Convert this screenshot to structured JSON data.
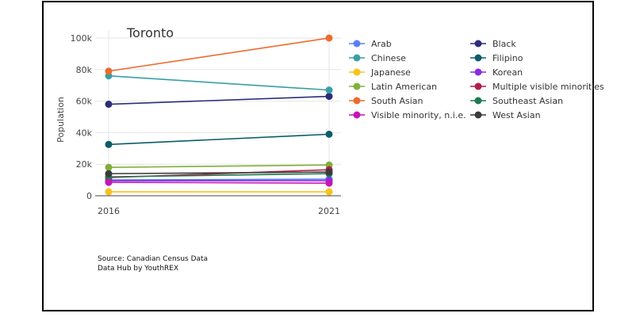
{
  "chart_data": {
    "type": "line",
    "title": "Toronto",
    "ylabel": "Population",
    "xlabel": "",
    "x": [
      "2016",
      "2021"
    ],
    "ylim": [
      0,
      105000
    ],
    "yticks": [
      {
        "value": 0,
        "label": "0"
      },
      {
        "value": 20000,
        "label": "20k"
      },
      {
        "value": 40000,
        "label": "40k"
      },
      {
        "value": 60000,
        "label": "60k"
      },
      {
        "value": 80000,
        "label": "80k"
      },
      {
        "value": 100000,
        "label": "100k"
      }
    ],
    "grid": true,
    "legend_position": "right",
    "series": [
      {
        "name": "Arab",
        "color": "#5b7ef5",
        "values": [
          10000,
          10500
        ]
      },
      {
        "name": "Black",
        "color": "#2b2d7c",
        "values": [
          58000,
          63000
        ]
      },
      {
        "name": "Chinese",
        "color": "#3a9ea5",
        "values": [
          76000,
          67000
        ]
      },
      {
        "name": "Filipino",
        "color": "#0c5c6a",
        "values": [
          32500,
          39000
        ]
      },
      {
        "name": "Japanese",
        "color": "#f7c21a",
        "values": [
          2500,
          2500
        ]
      },
      {
        "name": "Korean",
        "color": "#8a2be2",
        "values": [
          9500,
          9500
        ]
      },
      {
        "name": "Latin American",
        "color": "#80b03b",
        "values": [
          18000,
          19500
        ]
      },
      {
        "name": "Multiple visible minorities",
        "color": "#b21e48",
        "values": [
          11500,
          16500
        ]
      },
      {
        "name": "South Asian",
        "color": "#ee6a2e",
        "values": [
          79000,
          100000
        ]
      },
      {
        "name": "Southeast Asian",
        "color": "#1e7a4d",
        "values": [
          12000,
          14000
        ]
      },
      {
        "name": "Visible minority, n.i.e.",
        "color": "#c516b5",
        "values": [
          8500,
          8000
        ]
      },
      {
        "name": "West Asian",
        "color": "#3a3a3a",
        "values": [
          14000,
          15000
        ]
      }
    ]
  },
  "source": {
    "line1": "Source: Canadian Census Data",
    "line2": "Data Hub by YouthREX"
  }
}
